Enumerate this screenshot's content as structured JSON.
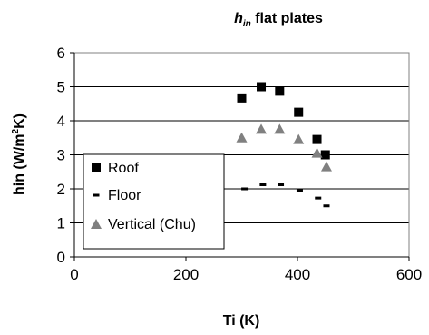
{
  "chart_data": {
    "type": "scatter",
    "title_main": "h",
    "title_sub": "in",
    "title_rest": " flat plates",
    "xlabel": "Ti (K)",
    "ylabel_main": "hin (W/m",
    "ylabel_sup": "2",
    "ylabel_end": "K)",
    "xlim": [
      0,
      600
    ],
    "ylim": [
      0,
      6
    ],
    "x_ticks": [
      0,
      200,
      400,
      600
    ],
    "y_ticks": [
      0,
      1,
      2,
      3,
      4,
      5,
      6
    ],
    "grid": "horizontal",
    "legend_position": "lower-left",
    "series": [
      {
        "name": "Roof",
        "marker": "square",
        "color": "#000000",
        "points": [
          [
            300,
            4.67
          ],
          [
            335,
            5.0
          ],
          [
            368,
            4.87
          ],
          [
            402,
            4.25
          ],
          [
            435,
            3.45
          ],
          [
            450,
            3.0
          ]
        ]
      },
      {
        "name": "Floor",
        "marker": "dash",
        "color": "#000000",
        "points": [
          [
            305,
            2.0
          ],
          [
            338,
            2.12
          ],
          [
            370,
            2.12
          ],
          [
            404,
            1.95
          ],
          [
            437,
            1.73
          ],
          [
            452,
            1.5
          ]
        ]
      },
      {
        "name": "Vertical (Chu)",
        "marker": "triangle",
        "color": "#808080",
        "points": [
          [
            300,
            3.5
          ],
          [
            335,
            3.75
          ],
          [
            368,
            3.75
          ],
          [
            402,
            3.45
          ],
          [
            435,
            3.05
          ],
          [
            452,
            2.65
          ]
        ]
      }
    ]
  }
}
